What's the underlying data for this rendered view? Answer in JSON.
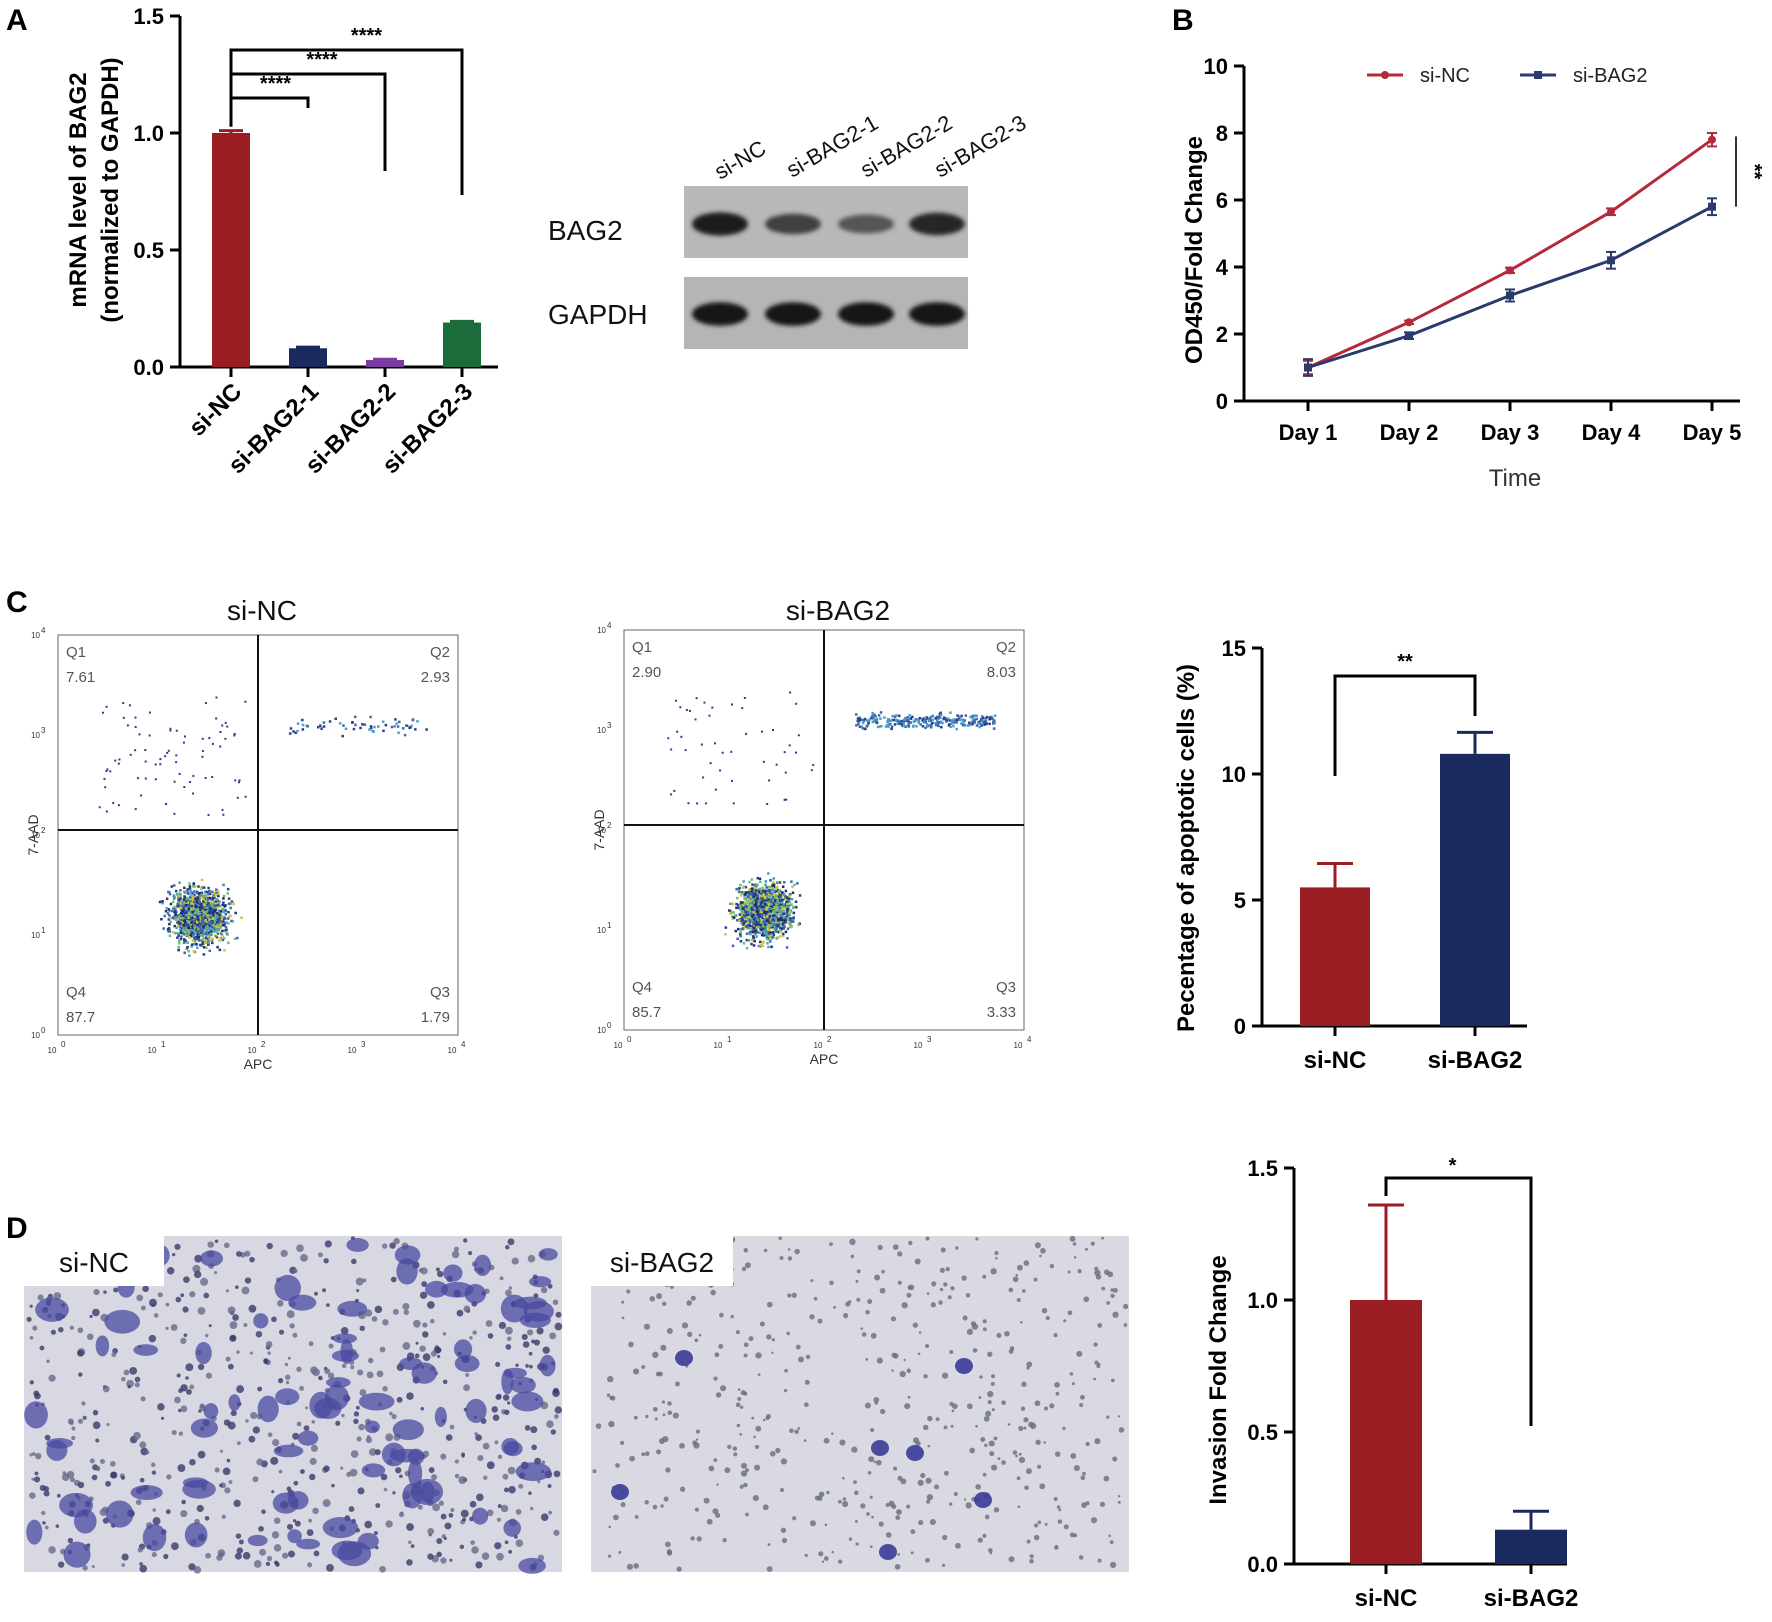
{
  "panels": {
    "A": "A",
    "B": "B",
    "C": "C",
    "D": "D"
  },
  "colors": {
    "siNC": "#9b1d24",
    "siBAG2": "#1b2a5e",
    "purple": "#7b3aa0",
    "green": "#1c6b3a",
    "lineNC": "#b52a3a",
    "lineBAG2": "#2a3a6e"
  },
  "chart_data": [
    {
      "id": "A-bar",
      "type": "bar",
      "categories": [
        "si-NC",
        "si-BAG2-1",
        "si-BAG2-2",
        "si-BAG2-3"
      ],
      "values": [
        1.0,
        0.08,
        0.03,
        0.19
      ],
      "errors": [
        0.01,
        0.005,
        0.003,
        0.005
      ],
      "bar_colors": [
        "#9b1d24",
        "#1b2a5e",
        "#7b3aa0",
        "#1c6b3a"
      ],
      "ylabel_line1": "mRNA level of BAG2",
      "ylabel_line2": "(normalized to GAPDH)",
      "ylim": [
        0,
        1.5
      ],
      "yticks": [
        "0.0",
        "0.5",
        "1.0",
        "1.5"
      ],
      "significance": [
        "****",
        "****",
        "****"
      ]
    },
    {
      "id": "B-line",
      "type": "line",
      "categories": [
        "Day 1",
        "Day 2",
        "Day 3",
        "Day 4",
        "Day 5"
      ],
      "series": [
        {
          "name": "si-NC",
          "values": [
            1.0,
            2.35,
            3.9,
            5.65,
            7.8
          ],
          "errors": [
            0.2,
            0.05,
            0.08,
            0.1,
            0.2
          ]
        },
        {
          "name": "si-BAG2",
          "values": [
            1.0,
            1.95,
            3.15,
            4.2,
            5.8
          ],
          "errors": [
            0.25,
            0.1,
            0.18,
            0.25,
            0.25
          ]
        }
      ],
      "ylabel": "OD450/Fold Change",
      "xlabel": "Time",
      "ylim": [
        0,
        10
      ],
      "yticks": [
        "0",
        "2",
        "4",
        "6",
        "8",
        "10"
      ],
      "significance": "**",
      "legend": "top"
    },
    {
      "id": "C-bar",
      "type": "bar",
      "categories": [
        "si-NC",
        "si-BAG2"
      ],
      "values": [
        5.5,
        10.8
      ],
      "errors": [
        0.95,
        0.85
      ],
      "bar_colors": [
        "#9b1d24",
        "#1b2a5e"
      ],
      "ylabel": "Pecentage of apoptotic cells (%)",
      "ylim": [
        0,
        15
      ],
      "yticks": [
        "0",
        "5",
        "10",
        "15"
      ],
      "significance": "**"
    },
    {
      "id": "D-bar",
      "type": "bar",
      "categories": [
        "si-NC",
        "si-BAG2"
      ],
      "values": [
        1.0,
        0.13
      ],
      "errors": [
        0.36,
        0.07
      ],
      "bar_colors": [
        "#9b1d24",
        "#1b2a5e"
      ],
      "ylabel": "Invasion Fold Change",
      "ylim": [
        0,
        1.5
      ],
      "yticks": [
        "0.0",
        "0.5",
        "1.0",
        "1.5"
      ],
      "significance": "*"
    }
  ],
  "western": {
    "lanes": [
      "si-NC",
      "si-BAG2-1",
      "si-BAG2-2",
      "si-BAG2-3"
    ],
    "rows": [
      {
        "label": "BAG2",
        "intensities": [
          0.9,
          0.55,
          0.35,
          0.8
        ]
      },
      {
        "label": "GAPDH",
        "intensities": [
          0.95,
          0.95,
          0.95,
          0.95
        ]
      }
    ]
  },
  "flow": {
    "xaxis": "APC",
    "yaxis": "7-AAD",
    "decades": [
      "10",
      "10",
      "10",
      "10",
      "10"
    ],
    "exponents": [
      "0",
      "1",
      "2",
      "3",
      "4"
    ],
    "plots": [
      {
        "title": "si-NC",
        "quadrants": [
          {
            "name": "Q1",
            "value": "7.61"
          },
          {
            "name": "Q2",
            "value": "2.93"
          },
          {
            "name": "Q3",
            "value": "1.79"
          },
          {
            "name": "Q4",
            "value": "87.7"
          }
        ]
      },
      {
        "title": "si-BAG2",
        "quadrants": [
          {
            "name": "Q1",
            "value": "2.90"
          },
          {
            "name": "Q2",
            "value": "8.03"
          },
          {
            "name": "Q3",
            "value": "3.33"
          },
          {
            "name": "Q4",
            "value": "85.7"
          }
        ]
      }
    ]
  },
  "invasion_images": [
    {
      "label": "si-NC"
    },
    {
      "label": "si-BAG2"
    }
  ]
}
